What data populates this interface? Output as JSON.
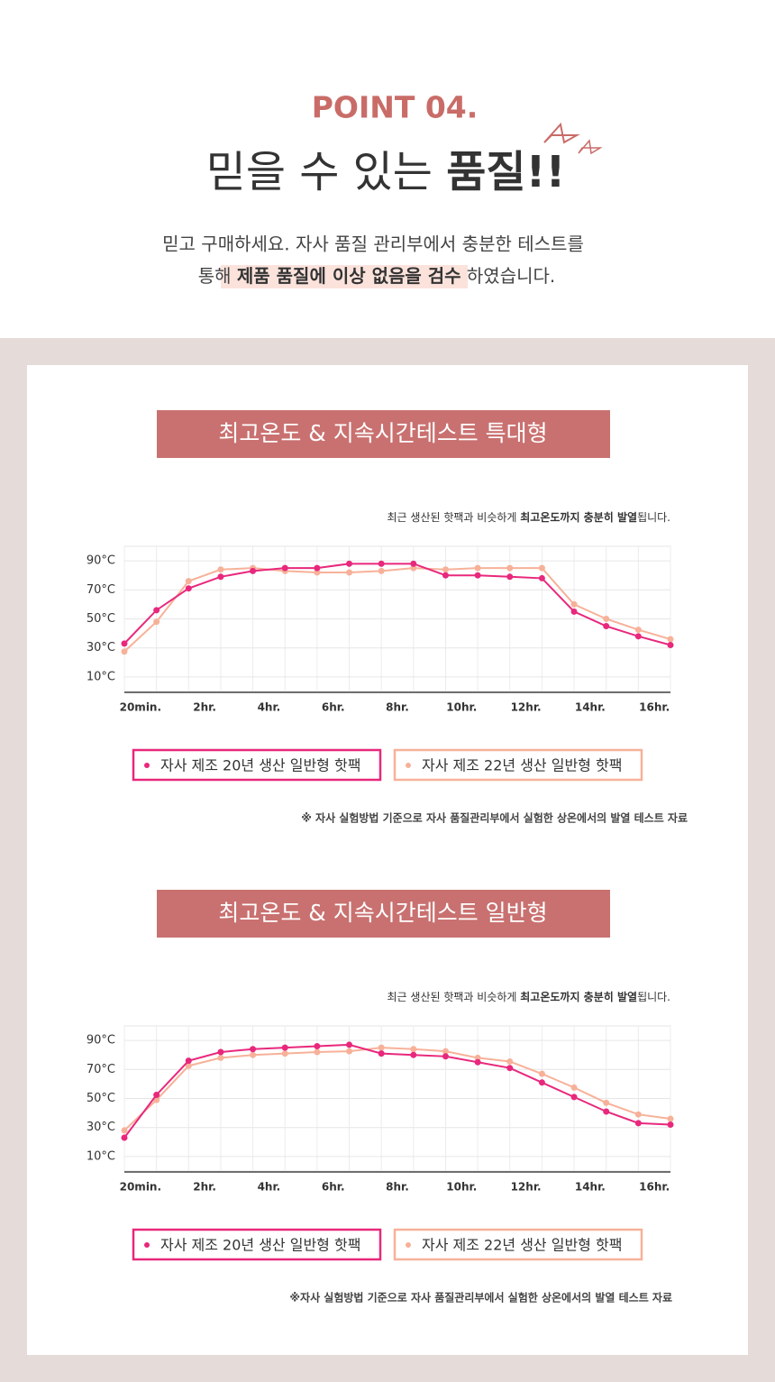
{
  "header": {
    "point": "POINT 04.",
    "title": [
      "믿을 수 있는 ",
      "품질!!"
    ],
    "description": {
      "line1": "믿고 구매하세요. 자사 품질 관리부에서 충분한 테스트를",
      "line2": [
        "통해 ",
        "제품 품질에 이상 없음을 검수",
        " 하였습니다."
      ]
    }
  },
  "chart_data": [
    {
      "type": "line",
      "title": "최고온도 & 지속시간테스트 특대형",
      "subtitle": [
        "최근 생산된 핫팩과 비슷하게 ",
        "최고온도까지 충분히 발열",
        "됩니다."
      ],
      "categories": [
        "20min.",
        null,
        "2hr.",
        null,
        "4hr.",
        null,
        "6hr.",
        null,
        "8hr.",
        null,
        "10hr.",
        null,
        "12hr.",
        null,
        "14hr.",
        null,
        "16hr.",
        null
      ],
      "ylim": [
        0,
        100
      ],
      "yticks": [
        {
          "value": 10,
          "label": "10°C"
        },
        {
          "value": 30,
          "label": "30°C"
        },
        {
          "value": 50,
          "label": "50°C"
        },
        {
          "value": 70,
          "label": "70°C"
        },
        {
          "value": 90,
          "label": "90°C"
        }
      ],
      "grid": true,
      "series": [
        {
          "name": "자사 제조 20년 생산 일반형 핫팩",
          "color": "#e8287c",
          "values": [
            33,
            56,
            71,
            79,
            83,
            85,
            85,
            88,
            88,
            88,
            80,
            80,
            79,
            78,
            55,
            45,
            38,
            32
          ]
        },
        {
          "name": "자사 제조 22년 생산 일반형 핫팩",
          "color": "#f7b199",
          "values": [
            27.5,
            48,
            76,
            84,
            85,
            83,
            82,
            82,
            83,
            85,
            84,
            85,
            85,
            85,
            60,
            50,
            42.5,
            36
          ]
        }
      ],
      "footnote": "※ 자사 실험방법 기준으로 자사 품질관리부에서 실험한 상온에서의 발열 테스트 자료"
    },
    {
      "type": "line",
      "title": "최고온도 & 지속시간테스트 일반형",
      "subtitle": [
        "최근 생산된 핫팩과 비슷하게 ",
        "최고온도까지 충분히 발열",
        "됩니다."
      ],
      "categories": [
        "20min.",
        null,
        "2hr.",
        null,
        "4hr.",
        null,
        "6hr.",
        null,
        "8hr.",
        null,
        "10hr.",
        null,
        "12hr.",
        null,
        "14hr.",
        null,
        "16hr.",
        null
      ],
      "ylim": [
        0,
        100
      ],
      "yticks": [
        {
          "value": 10,
          "label": "10°C"
        },
        {
          "value": 30,
          "label": "30°C"
        },
        {
          "value": 50,
          "label": "50°C"
        },
        {
          "value": 70,
          "label": "70°C"
        },
        {
          "value": 90,
          "label": "90°C"
        }
      ],
      "grid": true,
      "series": [
        {
          "name": "자사 제조 20년 생산 일반형 핫팩",
          "color": "#e8287c",
          "values": [
            23,
            52.5,
            76,
            82,
            84,
            85,
            86,
            87,
            81,
            80,
            79,
            75,
            71,
            61,
            51,
            41,
            33,
            32
          ]
        },
        {
          "name": "자사 제조 22년 생산 일반형 핫팩",
          "color": "#f7b199",
          "values": [
            28,
            49,
            72.5,
            78,
            80,
            81,
            82,
            82.5,
            85,
            84,
            82.5,
            78,
            75.5,
            67,
            57.5,
            47,
            39,
            36
          ]
        }
      ],
      "footnote": "※자사 실험방법 기준으로 자사 품질관리부에서 실험한 상온에서의 발열 테스트 자료"
    }
  ]
}
